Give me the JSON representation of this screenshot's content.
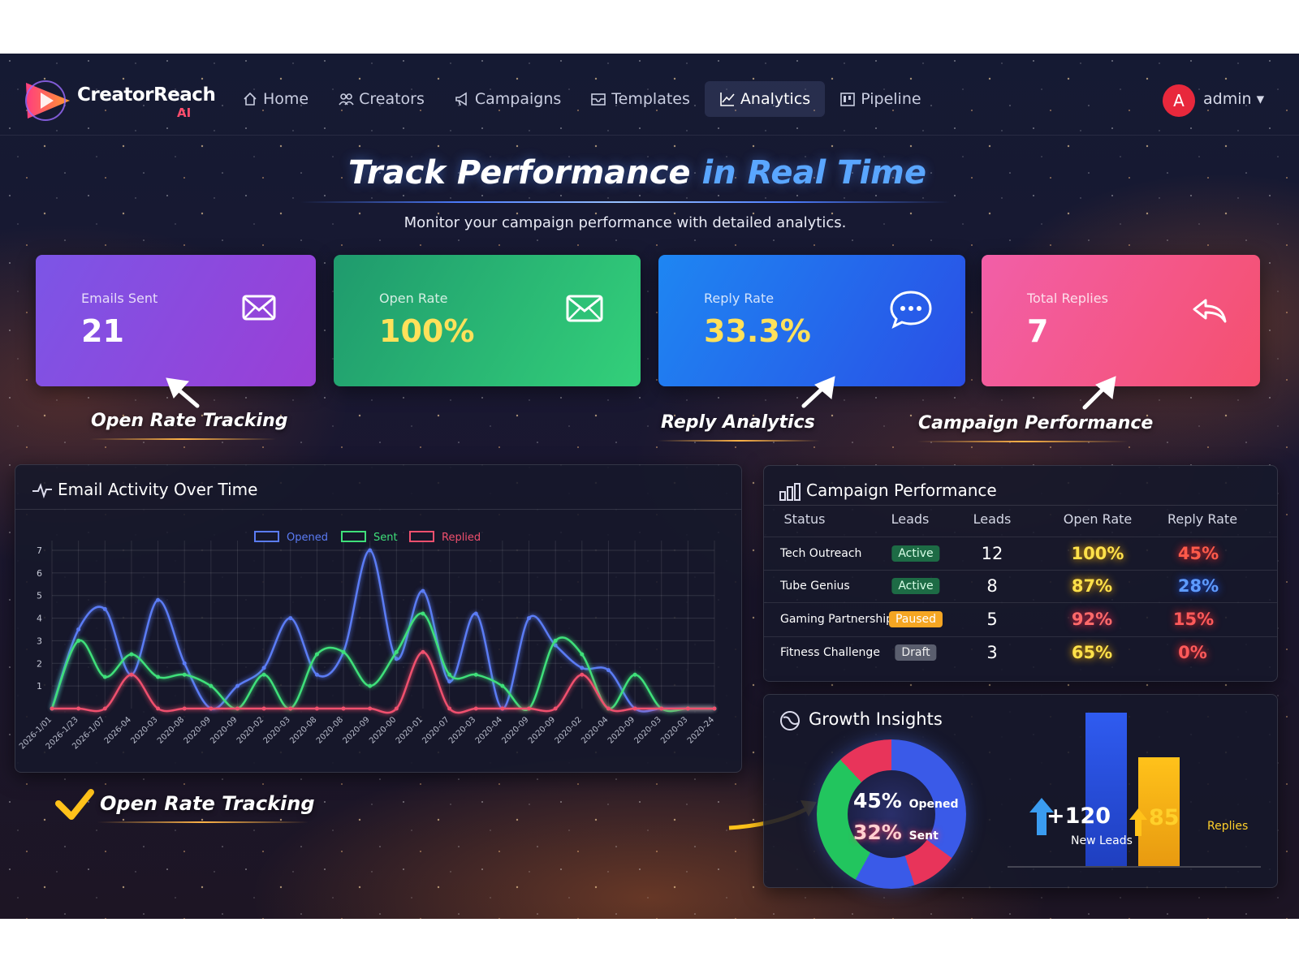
{
  "nav": {
    "brand": "CreatorReach",
    "brand_suffix": "AI",
    "items": [
      "Home",
      "Creators",
      "Campaigns",
      "Templates",
      "Analytics",
      "Pipeline"
    ],
    "active": 4,
    "avatar": "A",
    "user": "admin"
  },
  "hero": {
    "title_main": "Track Performance",
    "title_accent": "in Real Time",
    "subtitle": "Monitor your campaign performance with detailed analytics."
  },
  "stats": [
    {
      "label": "Emails Sent",
      "value": "21"
    },
    {
      "label": "Open Rate",
      "value": "100%"
    },
    {
      "label": "Reply Rate",
      "value": "33.3%"
    },
    {
      "label": "Total Replies",
      "value": "7"
    }
  ],
  "callouts": [
    "Open Rate Tracking",
    "Reply Analytics",
    "Campaign Performance"
  ],
  "bottom_callout": "Open Rate Tracking",
  "chart_data": {
    "type": "line",
    "title": "Email Activity Over Time",
    "categories": [
      "2026-1/01",
      "2026-1/23",
      "2026-1/07",
      "2026-04",
      "2020-03",
      "2020-08",
      "2020-09",
      "2020-09",
      "2020-02",
      "2020-03",
      "2020-08",
      "2020-08",
      "2020-09",
      "2020-00",
      "2020-01",
      "2020-07",
      "2020-03",
      "2020-04",
      "2020-09",
      "2020-09",
      "2020-02",
      "2020-04",
      "2020-09",
      "2020-03",
      "2020-03",
      "2020-24"
    ],
    "series": [
      {
        "name": "Opened",
        "color": "#5b7cf5",
        "values": [
          0,
          3.5,
          4.4,
          1.5,
          4.8,
          2,
          0,
          1,
          1.8,
          4,
          1.5,
          2.5,
          7,
          2.2,
          5.2,
          1.2,
          4.2,
          0,
          4,
          2.8,
          1.8,
          1.7,
          0,
          0,
          0,
          0
        ]
      },
      {
        "name": "Sent",
        "color": "#3fe07a",
        "values": [
          0,
          3,
          1.4,
          2.4,
          1.4,
          1.5,
          1,
          0,
          1.5,
          0,
          2.4,
          2.5,
          1,
          2.5,
          4.2,
          1.5,
          1.5,
          1,
          0,
          3,
          2.4,
          0,
          1.5,
          0,
          0,
          0
        ]
      },
      {
        "name": "Replied",
        "color": "#f0506e",
        "values": [
          0,
          0,
          0,
          1.5,
          0,
          0,
          0,
          0,
          0,
          0,
          0,
          0,
          0,
          0,
          2.5,
          0,
          0,
          0,
          0,
          0,
          1.5,
          0,
          0,
          0,
          0,
          0
        ]
      }
    ],
    "ylim": [
      0,
      7
    ],
    "yticks": [
      1,
      2,
      3,
      4,
      5,
      6,
      7
    ],
    "grid": true
  },
  "campaigns": {
    "title": "Campaign Performance",
    "headers": [
      "Status",
      "Leads",
      "Leads",
      "Open Rate",
      "Reply Rate"
    ],
    "rows": [
      [
        "Tech Outreach",
        "Active",
        "12",
        "100%",
        "45%"
      ],
      [
        "Tube Genius",
        "Active",
        "8",
        "87%",
        "28%"
      ],
      [
        "Gaming Partnership",
        "Paused",
        "5",
        "92%",
        "15%"
      ],
      [
        "Fitness Challenge",
        "Draft",
        "3",
        "65%",
        "0%"
      ]
    ]
  },
  "growth": {
    "title": "Growth Insights",
    "opened": "45%",
    "opened_label": "Opened",
    "sent": "32%",
    "sent_label": "Sent",
    "new_leads": {
      "value": 120,
      "label": "+120",
      "caption": "New Leads"
    },
    "replies": {
      "value": 85,
      "caption": "Replies"
    }
  }
}
